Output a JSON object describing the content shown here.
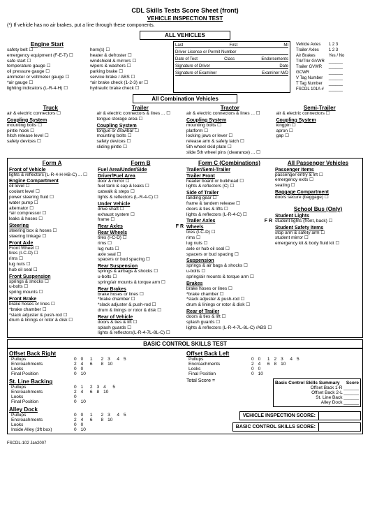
{
  "titles": {
    "main": "CDL Skills Tests Score Sheet (front)",
    "sub": "VEHICLE INSPECTION TEST",
    "note": "(*) If vehicle has no air brakes, put a line through these components.",
    "allVehicles": "ALL VEHICLES",
    "allCombination": "All Combination Vehicles",
    "basicControl": "BASIC CONTROL SKILLS TEST"
  },
  "engineStart": {
    "title": "Engine Start",
    "col1": [
      "safety belt",
      "emergency equipment (F-E-T)",
      "safe start",
      "temperature gauge",
      "oil pressure gauge",
      "ammeter or voltmeter gauge",
      "*air gauge",
      "lighting indicators (L-R-4-H)"
    ],
    "col2": [
      "horn(s)",
      "heater & defroster",
      "windshield & mirrors",
      "wipers & washers",
      "parking brake",
      "service brake / ABS",
      "*air brake check (1-2-3) or",
      "hydraulic brake check"
    ]
  },
  "headerInfo": {
    "lines": [
      [
        "Last",
        "First",
        "MI"
      ],
      [
        "Driver License or Permit Number",
        "",
        ""
      ],
      [
        "Date of Test",
        "Class",
        "Endorsements"
      ],
      [
        "Signature of Driver",
        "",
        "Date"
      ],
      [
        "Signature of Examiner",
        "",
        "Examiner M/D"
      ]
    ],
    "right": [
      [
        "Vehicle Axles",
        "1   2   3"
      ],
      [
        "Trailer Axles",
        "1   2   3"
      ],
      [
        "Air Brakes",
        "Yes  /  No"
      ],
      [
        "Trk/Trkr GVWR",
        "______"
      ],
      [
        "Trailer GVWR",
        "______"
      ],
      [
        "GCWR",
        "______"
      ],
      [
        "V Tag Number",
        "______"
      ],
      [
        "T Tag Number",
        "______"
      ],
      [
        "FSCDL 101A #",
        "______"
      ]
    ]
  },
  "combination": {
    "truck": {
      "title": "Truck",
      "items": [
        "air & electric connectors"
      ],
      "coupling": [
        "mounting bolts",
        "pintle hook",
        "hitch release level",
        "safety devices"
      ]
    },
    "trailer": {
      "title": "Trailer",
      "items": [
        "air & electric connectors & lines ...",
        "tongue storage area"
      ],
      "coupling": [
        "tongue or drawbar",
        "mounting bolts",
        "safety devices",
        "sliding pintle"
      ]
    },
    "tractor": {
      "title": "Tractor",
      "items": [
        "air & electric connectors & lines ..."
      ],
      "coupling": [
        "mounting bolts",
        "platform",
        "locking jaws or lever",
        "release arm & safety latch",
        "5th wheel skid plate",
        "slide 5th wheel pins (clearance) ..."
      ]
    },
    "semi": {
      "title": "Semi-Trailer",
      "items": [
        "air & electric connectors"
      ],
      "coupling": [
        "kingpin",
        "apron",
        "gap"
      ]
    },
    "couplingTitle": "Coupling System"
  },
  "forms": {
    "formA": {
      "title": "Form A",
      "front": {
        "t": "Front of Vehicle",
        "i": [
          "lights & reflectors (L-R-4-H-HB-C) ..."
        ]
      },
      "engine": {
        "t": "Engine Compartment",
        "i": [
          "oil level",
          "coolant level",
          "power steering fluid",
          "water pump",
          "alternator",
          "*air compressor",
          "leaks & hoses"
        ]
      },
      "steering": {
        "t": "Steering",
        "i": [
          "steering box & hoses",
          "steering linkage"
        ]
      },
      "frontAxle": {
        "t": "Front Axle",
        "i": [
          "Front Wheel",
          "tires (I-C-D)",
          "rims",
          "lug nuts",
          "hub oil seal"
        ]
      },
      "frontSusp": {
        "t": "Front Suspension",
        "i": [
          "springs & shocks",
          "u-bolts",
          "spring mounts"
        ]
      },
      "frontBrake": {
        "t": "Front Brake",
        "i": [
          "brake hoses or lines",
          "*brake chamber",
          "*slack adjuster & push-rod",
          "drum & linings or rotor & disk"
        ]
      }
    },
    "formB": {
      "title": "Form B",
      "fuelArea": {
        "t": "Fuel Area/Under/Side",
        "t2": "Driver/Fuel Area",
        "i": [
          "door & mirror",
          "fuel tank & cap & leaks",
          "catwalk & steps",
          "lights & reflectors (L-R-4-C)"
        ]
      },
      "under": {
        "t": "Under Vehicle",
        "i": [
          "drive shaft",
          "exhaust system",
          "frame"
        ]
      },
      "rearAxles": {
        "t": "Rear Axles",
        "t2": "Rear Wheels",
        "fr": "F   R",
        "i": [
          "tires (I-C-D)",
          "rims",
          "lug nuts",
          "axle seal",
          "spacers or bud spacing"
        ]
      },
      "rearSusp": {
        "t": "Rear Suspension",
        "i": [
          "springs & airbags & shocks",
          "u-bolts",
          "spring/air mounts & torque arm"
        ]
      },
      "rearBrakes": {
        "t": "Rear Brakes",
        "i": [
          "brake hoses or lines",
          "*brake chamber",
          "*slack adjuster & push-rod",
          "drum & linings or rotor & disk"
        ]
      },
      "rearVeh": {
        "t": "Rear of Vehicle",
        "i": [
          "doors & ties & lift",
          "splash guards",
          "lights & reflectors(L-R-4-7L-8L-C)"
        ]
      }
    },
    "formC": {
      "title": "Form C (Combinations)",
      "trailerSemi": {
        "t": "Trailer/Semi-Trailer",
        "t2": "Trailer Front",
        "i": [
          "header board or bulkhead",
          "lights & reflectors (C)"
        ]
      },
      "sideTrailer": {
        "t": "Side of Trailer",
        "i": [
          "landing gear",
          "frame & tandem release",
          "doors & ties & lifts",
          "lights & reflectors (L-R-4-C)"
        ]
      },
      "trailerAxles": {
        "t": "Trailer Axles",
        "t2": "Wheels",
        "fr": "F   R",
        "i": [
          "tires (I-C-D)",
          "rims",
          "lug nuts",
          "axle or hub oil seal",
          "spacers or bud spacing"
        ]
      },
      "suspension": {
        "t": "Suspension",
        "i": [
          "springs & air bags & shocks",
          "u-bolts",
          "spring/air mounts & torque arm"
        ]
      },
      "brakes": {
        "t": "Brakes",
        "i": [
          "brake hoses or lines",
          "*brake chamber",
          "*slack adjuster & push-rod",
          "drum & linings or rotor & disk"
        ]
      },
      "rearTrailer": {
        "t": "Rear of Trailer",
        "i": [
          "doors & ties & lift",
          "splash guards",
          "lights & reflectors (L-R-4-7L-8L-C) /ABS"
        ]
      }
    },
    "passenger": {
      "title": "All Passenger Vehicles",
      "items": {
        "t": "Passenger Items",
        "i": [
          "passenger entry & lift",
          "emergency exits",
          "seating"
        ]
      },
      "baggage": {
        "t": "Baggage Compartment",
        "i": [
          "doors secure (baggage)"
        ]
      },
      "school": {
        "title": "School Bus (Only)"
      },
      "lights": {
        "t": "Student Lights",
        "i": [
          "student lights (front, back)"
        ]
      },
      "safety": {
        "t": "Student Safety Items",
        "i": [
          "stop arm & safety arm",
          "student mirror",
          "emergency kit & body fluid kit"
        ]
      }
    }
  },
  "skills": {
    "offsetRight": {
      "t": "Offset Back Right",
      "rows": [
        [
          "Pullups",
          "0",
          "0",
          "1",
          "",
          "2",
          "3",
          "4",
          "5"
        ],
        [
          "Encroachments",
          "2",
          "4",
          "6",
          "",
          "8",
          "10",
          "",
          ""
        ],
        [
          "Looks",
          "0",
          "0",
          "",
          "",
          "",
          "",
          "",
          ""
        ],
        [
          "Final Position",
          "0",
          "10",
          "",
          "",
          "",
          "",
          "",
          ""
        ]
      ]
    },
    "stLine": {
      "t": "St. Line Backing",
      "rows": [
        [
          "Pullups",
          "0",
          "1",
          "2",
          "3",
          "4",
          "5"
        ],
        [
          "Encroachments",
          "2",
          "4",
          "6",
          "8",
          "10",
          ""
        ],
        [
          "Looks",
          "0",
          "",
          "",
          "",
          "",
          ""
        ],
        [
          "Final Position",
          "0",
          "10",
          "",
          "",
          "",
          ""
        ]
      ]
    },
    "alley": {
      "t": "Alley Dock",
      "rows": [
        [
          "Pullups",
          "0",
          "0",
          "1",
          "",
          "2",
          "3",
          "4",
          "5"
        ],
        [
          "Encroachments",
          "2",
          "4",
          "6",
          "",
          "8",
          "10",
          "",
          ""
        ],
        [
          "Looks",
          "0",
          "0",
          "",
          "",
          "",
          "",
          "",
          ""
        ],
        [
          "Inside Alley (3ft box)",
          "0",
          "10",
          "",
          "",
          "",
          "",
          "",
          ""
        ]
      ]
    },
    "offsetLeft": {
      "t": "Offset Back Left",
      "rows": [
        [
          "Pullups",
          "0",
          "0",
          "1",
          "2",
          "3",
          "4",
          "5"
        ],
        [
          "Encroachments",
          "2",
          "4",
          "6",
          "8",
          "10",
          "",
          ""
        ],
        [
          "Looks",
          "0",
          "0",
          "",
          "",
          "",
          "",
          ""
        ],
        [
          "Final Position",
          "0",
          "10",
          "",
          "",
          "",
          "",
          ""
        ]
      ]
    },
    "summary": {
      "t": "Basic Control Skills Summary",
      "score": "Score",
      "items": [
        "Offset Back 1-R",
        "Offset Back 2-L",
        "St. Line Back",
        "Alley Dock"
      ],
      "total": "Total Score = "
    },
    "bigScores": [
      "VEHICLE INSPECTION SCORE:",
      "BASIC CONTROL SKILLS SCORE:"
    ]
  },
  "footer": "FSCDL-102 Jan2007"
}
